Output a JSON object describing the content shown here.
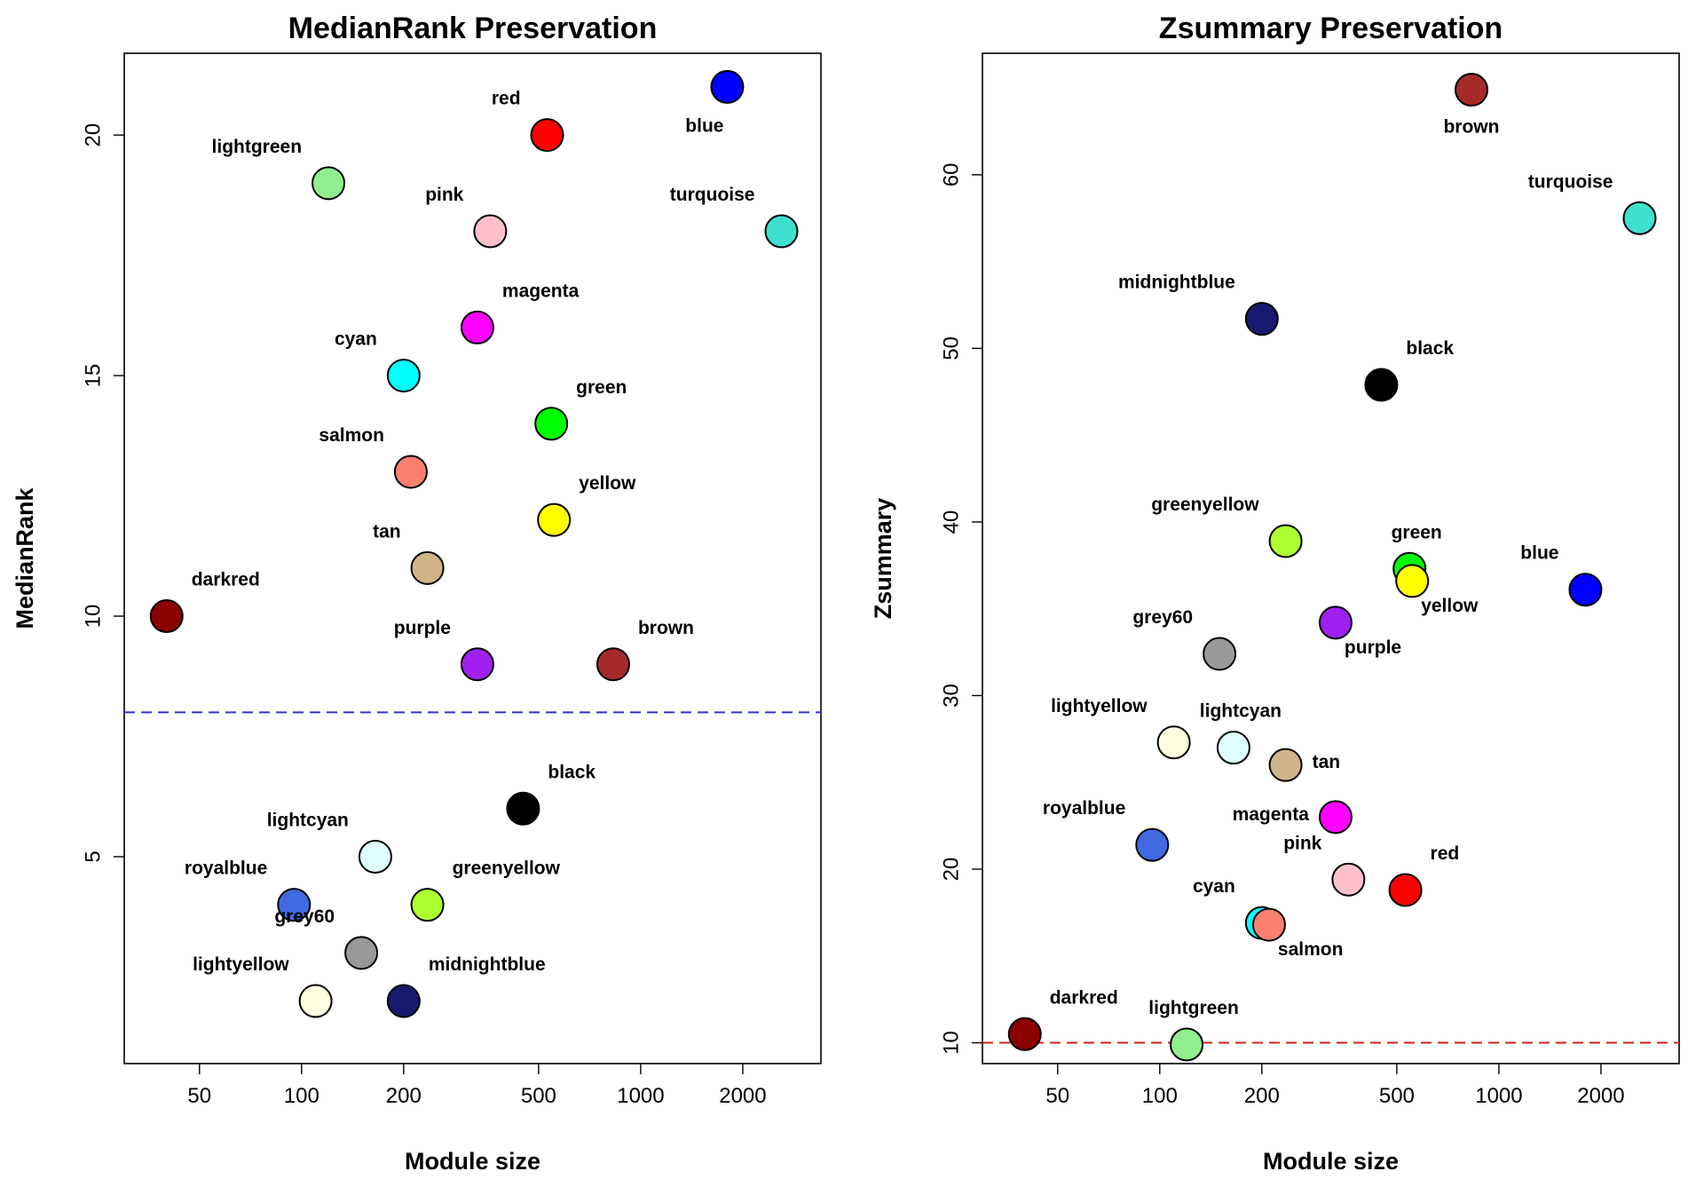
{
  "chart_data": [
    {
      "type": "scatter",
      "title": "MedianRank Preservation",
      "xlabel": "Module size",
      "ylabel": "MedianRank",
      "xscale": "log",
      "xlim": [
        30,
        3400
      ],
      "ylim": [
        0.7,
        21.7
      ],
      "xticks": [
        50,
        100,
        200,
        500,
        1000,
        2000
      ],
      "yticks": [
        5,
        10,
        15,
        20
      ],
      "threshold": {
        "y": 8,
        "color": "#3333cc",
        "style": "dashed"
      },
      "points": [
        {
          "label": "blue",
          "color": "#0000FF",
          "x": 1800,
          "y": 21,
          "label_pos": "below-left"
        },
        {
          "label": "red",
          "color": "#FF0000",
          "x": 530,
          "y": 20,
          "label_pos": "above-left"
        },
        {
          "label": "lightgreen",
          "color": "#90EE90",
          "x": 120,
          "y": 19,
          "label_pos": "above-left"
        },
        {
          "label": "pink",
          "color": "#FFC0CB",
          "x": 360,
          "y": 18,
          "label_pos": "above-left"
        },
        {
          "label": "turquoise",
          "color": "#40E0D0",
          "x": 2600,
          "y": 18,
          "label_pos": "above-left"
        },
        {
          "label": "magenta",
          "color": "#FF00FF",
          "x": 330,
          "y": 16,
          "label_pos": "above-right"
        },
        {
          "label": "cyan",
          "color": "#00FFFF",
          "x": 200,
          "y": 15,
          "label_pos": "above-left"
        },
        {
          "label": "green",
          "color": "#00FF00",
          "x": 545,
          "y": 14,
          "label_pos": "above-right"
        },
        {
          "label": "salmon",
          "color": "#FA8072",
          "x": 210,
          "y": 13,
          "label_pos": "above-left"
        },
        {
          "label": "yellow",
          "color": "#FFFF00",
          "x": 555,
          "y": 12,
          "label_pos": "above-right"
        },
        {
          "label": "tan",
          "color": "#D2B48C",
          "x": 235,
          "y": 11,
          "label_pos": "above-left"
        },
        {
          "label": "darkred",
          "color": "#8B0000",
          "x": 40,
          "y": 10,
          "label_pos": "above-right"
        },
        {
          "label": "purple",
          "color": "#A020F0",
          "x": 330,
          "y": 9,
          "label_pos": "above-left"
        },
        {
          "label": "brown",
          "color": "#A52A2A",
          "x": 830,
          "y": 9,
          "label_pos": "above-right"
        },
        {
          "label": "black",
          "color": "#000000",
          "x": 450,
          "y": 6,
          "label_pos": "above-right"
        },
        {
          "label": "lightcyan",
          "color": "#E0FFFF",
          "x": 165,
          "y": 5,
          "label_pos": "above-left"
        },
        {
          "label": "royalblue",
          "color": "#4169E1",
          "x": 95,
          "y": 4,
          "label_pos": "above-left"
        },
        {
          "label": "greenyellow",
          "color": "#ADFF2F",
          "x": 235,
          "y": 4,
          "label_pos": "above-right"
        },
        {
          "label": "grey60",
          "color": "#999999",
          "x": 150,
          "y": 3,
          "label_pos": "above-left"
        },
        {
          "label": "lightyellow",
          "color": "#FFFFE0",
          "x": 110,
          "y": 2,
          "label_pos": "above-left"
        },
        {
          "label": "midnightblue",
          "color": "#191970",
          "x": 200,
          "y": 2,
          "label_pos": "above-right"
        }
      ]
    },
    {
      "type": "scatter",
      "title": "Zsummary Preservation",
      "xlabel": "Module size",
      "ylabel": "Zsummary",
      "xscale": "log",
      "xlim": [
        30,
        3400
      ],
      "ylim": [
        8.8,
        67
      ],
      "xticks": [
        50,
        100,
        200,
        500,
        1000,
        2000
      ],
      "yticks": [
        10,
        20,
        30,
        40,
        50,
        60
      ],
      "threshold": {
        "y": 10,
        "color": "#cc2222",
        "style": "dashed"
      },
      "points": [
        {
          "label": "brown",
          "color": "#A52A2A",
          "x": 830,
          "y": 64.9,
          "label_pos": "below"
        },
        {
          "label": "turquoise",
          "color": "#40E0D0",
          "x": 2600,
          "y": 57.5,
          "label_pos": "above-left"
        },
        {
          "label": "midnightblue",
          "color": "#191970",
          "x": 200,
          "y": 51.7,
          "label_pos": "above-left"
        },
        {
          "label": "black",
          "color": "#000000",
          "x": 450,
          "y": 47.9,
          "label_pos": "above-right"
        },
        {
          "label": "greenyellow",
          "color": "#ADFF2F",
          "x": 235,
          "y": 38.9,
          "label_pos": "above-left"
        },
        {
          "label": "green",
          "color": "#00FF00",
          "x": 545,
          "y": 37.3,
          "label_pos": "above"
        },
        {
          "label": "yellow",
          "color": "#FFFF00",
          "x": 555,
          "y": 36.6,
          "label_pos": "below-right"
        },
        {
          "label": "blue",
          "color": "#0000FF",
          "x": 1800,
          "y": 36.1,
          "label_pos": "above-left"
        },
        {
          "label": "purple",
          "color": "#A020F0",
          "x": 330,
          "y": 34.2,
          "label_pos": "below-right"
        },
        {
          "label": "grey60",
          "color": "#999999",
          "x": 150,
          "y": 32.4,
          "label_pos": "above-left"
        },
        {
          "label": "lightyellow",
          "color": "#FFFFE0",
          "x": 110,
          "y": 27.3,
          "label_pos": "above-left"
        },
        {
          "label": "lightcyan",
          "color": "#E0FFFF",
          "x": 165,
          "y": 27.0,
          "label_pos": "above"
        },
        {
          "label": "tan",
          "color": "#D2B48C",
          "x": 235,
          "y": 26.0,
          "label_pos": "right"
        },
        {
          "label": "royalblue",
          "color": "#4169E1",
          "x": 95,
          "y": 21.4,
          "label_pos": "above-left"
        },
        {
          "label": "magenta",
          "color": "#FF00FF",
          "x": 330,
          "y": 23.0,
          "label_pos": "left"
        },
        {
          "label": "pink",
          "color": "#FFC0CB",
          "x": 360,
          "y": 19.4,
          "label_pos": "above-left"
        },
        {
          "label": "red",
          "color": "#FF0000",
          "x": 530,
          "y": 18.8,
          "label_pos": "above-right"
        },
        {
          "label": "cyan",
          "color": "#00FFFF",
          "x": 200,
          "y": 16.9,
          "label_pos": "above-left"
        },
        {
          "label": "salmon",
          "color": "#FA8072",
          "x": 210,
          "y": 16.8,
          "label_pos": "below-right"
        },
        {
          "label": "darkred",
          "color": "#8B0000",
          "x": 40,
          "y": 10.5,
          "label_pos": "above-right"
        },
        {
          "label": "lightgreen",
          "color": "#90EE90",
          "x": 120,
          "y": 9.9,
          "label_pos": "above"
        }
      ]
    }
  ]
}
